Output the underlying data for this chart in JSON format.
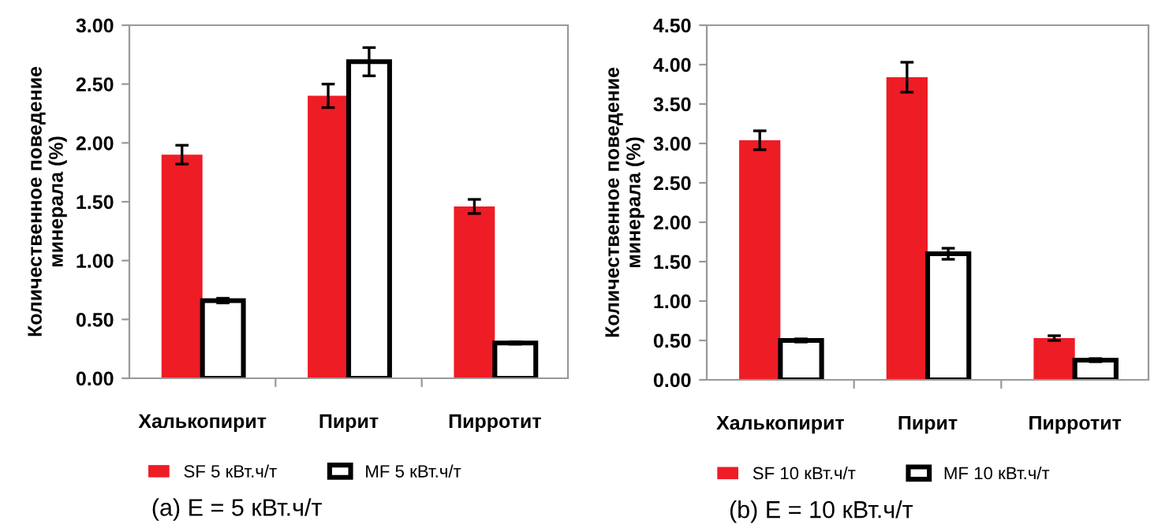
{
  "chart_data": [
    {
      "type": "bar",
      "ylabel": "Количественное поведение минерала (%)",
      "categories": [
        "Халькопирит",
        "Пирит",
        "Пирротит"
      ],
      "series": [
        {
          "name": "SF 5 кВт.ч/т",
          "color": "#ee1c25",
          "values": [
            1.9,
            2.4,
            1.46
          ],
          "errors": [
            0.08,
            0.1,
            0.06
          ]
        },
        {
          "name": "MF 5 кВт.ч/т",
          "color": "#ffffff",
          "values": [
            0.66,
            2.69,
            0.3
          ],
          "errors": [
            0.02,
            0.12,
            0.01
          ]
        }
      ],
      "ylim": [
        0,
        3
      ],
      "yticks": [
        {
          "value": 0,
          "label": "0.00"
        },
        {
          "value": 0.5,
          "label": "0.50"
        },
        {
          "value": 1,
          "label": "1.00"
        },
        {
          "value": 1.5,
          "label": "1.50"
        },
        {
          "value": 2,
          "label": "2.00"
        },
        {
          "value": 2.5,
          "label": "2.50"
        },
        {
          "value": 3,
          "label": "3.00"
        }
      ],
      "grid": false,
      "legend": "bottom",
      "annotations": [
        "(a) E = 5 кВт.ч/т"
      ]
    },
    {
      "type": "bar",
      "ylabel": "Количественное поведение минерала (%)",
      "categories": [
        "Халькопирит",
        "Пирит",
        "Пирротит"
      ],
      "series": [
        {
          "name": "SF 10 кВт.ч/т",
          "color": "#ee1c25",
          "values": [
            3.04,
            3.84,
            0.53
          ],
          "errors": [
            0.12,
            0.19,
            0.03
          ]
        },
        {
          "name": "MF 10 кВт.ч/т",
          "color": "#ffffff",
          "values": [
            0.5,
            1.6,
            0.25
          ],
          "errors": [
            0.02,
            0.07,
            0.02
          ]
        }
      ],
      "ylim": [
        0,
        4.5
      ],
      "yticks": [
        {
          "value": 0,
          "label": "0.00"
        },
        {
          "value": 0.5,
          "label": "0.50"
        },
        {
          "value": 1,
          "label": "1.00"
        },
        {
          "value": 1.5,
          "label": "1.50"
        },
        {
          "value": 2,
          "label": "2.00"
        },
        {
          "value": 2.5,
          "label": "2.50"
        },
        {
          "value": 3,
          "label": "3.00"
        },
        {
          "value": 3.5,
          "label": "3.50"
        },
        {
          "value": 4,
          "label": "4.00"
        },
        {
          "value": 4.5,
          "label": "4.50"
        }
      ],
      "grid": false,
      "legend": "bottom",
      "annotations": [
        "(b) E = 10 кВт.ч/т"
      ]
    }
  ]
}
